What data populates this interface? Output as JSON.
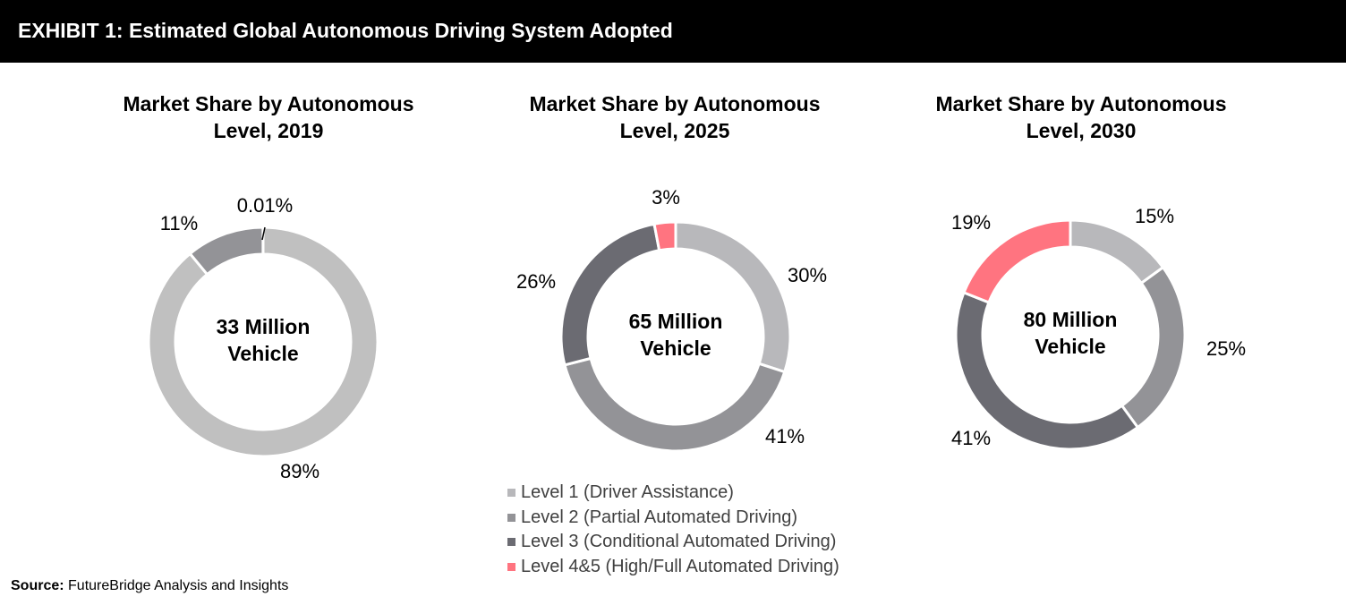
{
  "header": {
    "title": "EXHIBIT 1: Estimated Global Autonomous Driving System Adopted"
  },
  "chart_data": [
    {
      "type": "pie",
      "title_line1": "Market Share by Autonomous",
      "title_line2": "Level, 2019",
      "center_line1": "33 Million",
      "center_line2": "Vehicle",
      "categories": [
        "Level 1 (Driver Assistance)",
        "Level 2 (Partial Automated Driving)",
        "Level 3 (Conditional Automated Driving)",
        "Level 4&5 (High/Full Automated Driving)"
      ],
      "values": [
        89,
        11,
        0.01,
        0
      ],
      "labels": [
        "89%",
        "11%",
        "0.01%",
        ""
      ]
    },
    {
      "type": "pie",
      "title_line1": "Market Share by Autonomous",
      "title_line2": "Level, 2025",
      "center_line1": "65 Million",
      "center_line2": "Vehicle",
      "categories": [
        "Level 1 (Driver Assistance)",
        "Level 2 (Partial Automated Driving)",
        "Level 3 (Conditional Automated Driving)",
        "Level 4&5 (High/Full Automated Driving)"
      ],
      "values": [
        30,
        41,
        26,
        3
      ],
      "labels": [
        "30%",
        "41%",
        "26%",
        "3%"
      ]
    },
    {
      "type": "pie",
      "title_line1": "Market Share by Autonomous",
      "title_line2": "Level, 2030",
      "center_line1": "80 Million",
      "center_line2": "Vehicle",
      "categories": [
        "Level 1 (Driver Assistance)",
        "Level 2 (Partial Automated Driving)",
        "Level 3 (Conditional Automated Driving)",
        "Level 4&5 (High/Full Automated Driving)"
      ],
      "values": [
        15,
        25,
        41,
        19
      ],
      "labels": [
        "15%",
        "25%",
        "41%",
        "19%"
      ]
    }
  ],
  "legend": {
    "items": [
      {
        "label": "Level 1 (Driver Assistance)",
        "color": "#b8b8bb"
      },
      {
        "label": "Level 2 (Partial Automated Driving)",
        "color": "#939397"
      },
      {
        "label": "Level 3 (Conditional Automated Driving)",
        "color": "#6b6b72"
      },
      {
        "label": "Level 4&5 (High/Full Automated Driving)",
        "color": "#ff7480"
      }
    ]
  },
  "colors": {
    "level1_2019": "#c0c0c0",
    "level1": "#b8b8bb",
    "level2": "#939397",
    "level3": "#6b6b72",
    "level45": "#ff7480"
  },
  "source": {
    "label": "Source:",
    "text": " FutureBridge Analysis and Insights"
  }
}
